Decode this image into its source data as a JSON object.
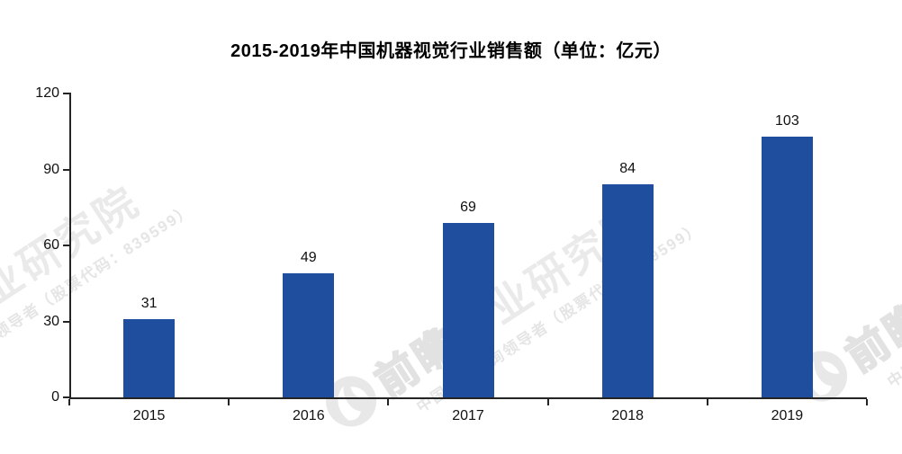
{
  "chart_data": {
    "type": "bar",
    "title": "2015-2019年中国机器视觉行业销售额（单位：亿元）",
    "categories": [
      "2015",
      "2016",
      "2017",
      "2018",
      "2019"
    ],
    "values": [
      31,
      49,
      69,
      84,
      103
    ],
    "value_labels": [
      "31",
      "49",
      "69",
      "84",
      "103"
    ],
    "xlabel": "",
    "ylabel": "",
    "ylim": [
      0,
      120
    ],
    "yticks": [
      0,
      30,
      60,
      90,
      120
    ],
    "grid": "off",
    "legend": "none",
    "bar_color": "#1f4e9e",
    "axis_color": "#242424"
  },
  "watermark": {
    "brand_outline": "前瞻",
    "brand_rest": "产业研究院",
    "subtext": "中国产业咨询领导者（股票代码：839599）",
    "logo_color": "#e8e8e8",
    "text_color": "#eaeaea"
  }
}
